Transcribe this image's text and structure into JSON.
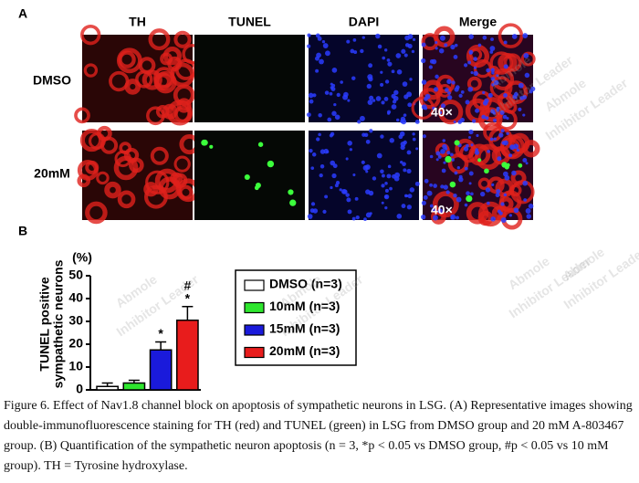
{
  "figure": {
    "panel_a": "A",
    "panel_b": "B",
    "columns": [
      "TH",
      "TUNEL",
      "DAPI",
      "Merge"
    ],
    "rows": [
      "DMSO",
      "20mM"
    ],
    "magnification": "40×"
  },
  "chart_data": {
    "type": "bar",
    "y_label": [
      "TUNEL positive",
      "sympathetic neurons"
    ],
    "y_unit": "(%)",
    "ylim": [
      0,
      50
    ],
    "yticks": [
      0,
      10,
      20,
      30,
      40,
      50
    ],
    "series": [
      {
        "name": "DMSO (n=3)",
        "color": "#ffffff",
        "values": [
          1.5
        ],
        "errors": [
          1.5
        ],
        "annotations": []
      },
      {
        "name": "10mM (n=3)",
        "color": "#2ee62e",
        "values": [
          3
        ],
        "errors": [
          1.2
        ],
        "annotations": []
      },
      {
        "name": "15mM (n=3)",
        "color": "#1a1adb",
        "values": [
          17.5
        ],
        "errors": [
          3.5
        ],
        "annotations": [
          "*"
        ]
      },
      {
        "name": "20mM (n=3)",
        "color": "#e81c1c",
        "values": [
          30.5
        ],
        "errors": [
          6
        ],
        "annotations": [
          "#",
          "*"
        ]
      }
    ]
  },
  "caption": "Figure 6. Effect of Nav1.8 channel block on apoptosis of sympathetic neurons in LSG. (A) Representative images showing double-immunofluorescence staining for TH (red) and TUNEL (green) in LSG from DMSO group and 20 mM A-803467 group. (B) Quantification of the sympathetic neuron apoptosis (n = 3, *p < 0.05 vs DMSO group, #p < 0.05 vs 10 mM group). TH = Tyrosine hydroxylase.",
  "watermark": {
    "brand": "Abmole",
    "tagline": "Inhibitor Leader"
  }
}
